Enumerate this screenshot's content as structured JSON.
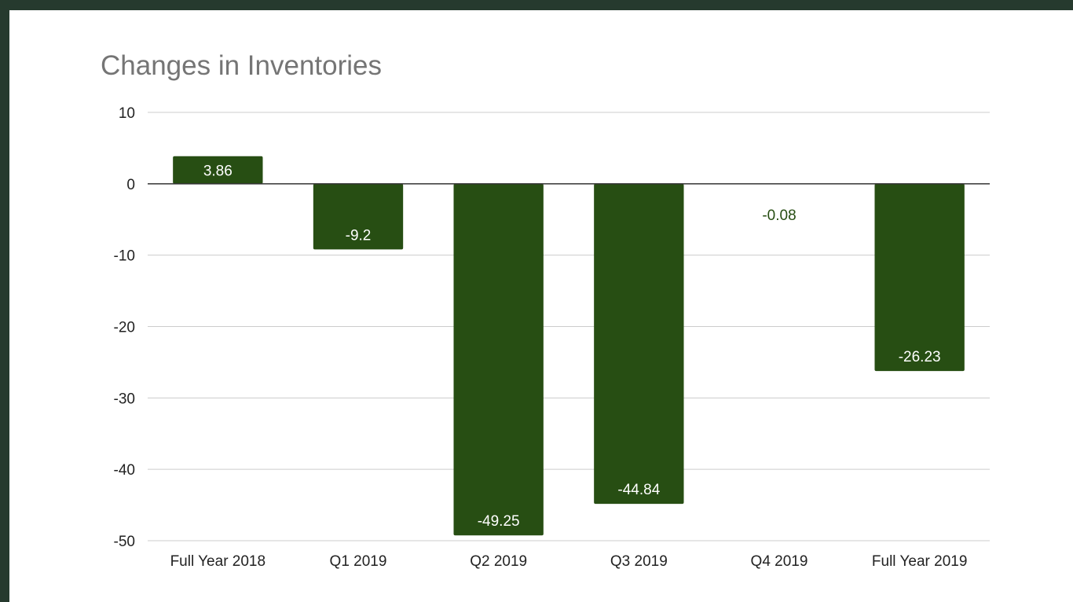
{
  "chart_data": {
    "type": "bar",
    "title": "Changes in Inventories",
    "xlabel": "",
    "ylabel": "",
    "categories": [
      "Full Year 2018",
      "Q1 2019",
      "Q2 2019",
      "Q3 2019",
      "Q4 2019",
      "Full Year 2019"
    ],
    "values": [
      3.86,
      -9.2,
      -49.25,
      -44.84,
      -0.08,
      -26.23
    ],
    "data_labels": [
      "3.86",
      "-9.2",
      "-49.25",
      "-44.84",
      "-0.08",
      "-26.23"
    ],
    "ylim": [
      -50,
      10
    ],
    "yticks": [
      10,
      0,
      -10,
      -20,
      -30,
      -40,
      -50
    ],
    "ytick_labels": [
      "10",
      "0",
      "-10",
      "-20",
      "-30",
      "-40",
      "-50"
    ],
    "grid": true,
    "legend": "none",
    "colors": {
      "bar": "#274e13",
      "label_inside": "#ffffff",
      "label_outside": "#274e13",
      "grid": "#cccccc",
      "zero_line": "#333333",
      "frame": "#263a2e"
    }
  }
}
